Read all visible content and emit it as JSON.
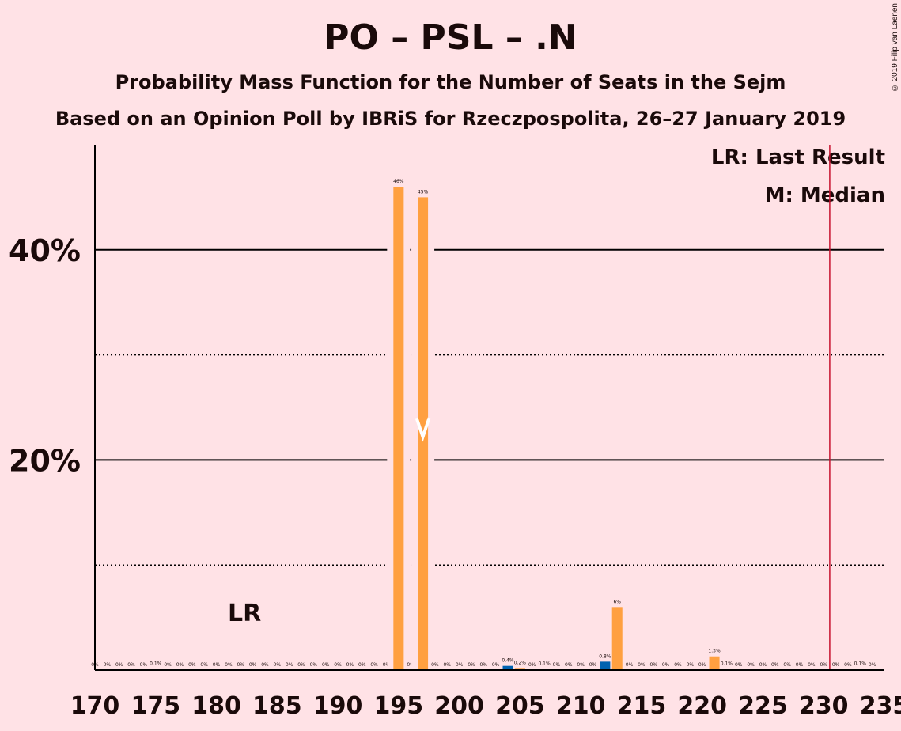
{
  "title": "PO – PSL – .N",
  "subtitle": "Probability Mass Function for the Number of Seats in the Sejm",
  "subtitle2": "Based on an Opinion Poll by IBRiS for Rzeczpospolita, 26–27 January 2019",
  "copyright": "© 2019 Filip van Laenen",
  "legend": {
    "last_result": "LR: Last Result",
    "median": "M: Median"
  },
  "lr_label": "LR",
  "colors": {
    "background": "#FFE2E6",
    "orange": "#FFA040",
    "blue": "#0062B0",
    "majority_line": "#C8102E"
  },
  "chart_data": {
    "type": "bar",
    "xlim": [
      170,
      235
    ],
    "ylim": [
      0,
      50
    ],
    "x_ticks": [
      "170",
      "175",
      "180",
      "185",
      "190",
      "195",
      "200",
      "205",
      "210",
      "215",
      "220",
      "225",
      "230",
      "235"
    ],
    "y_ticks": [
      "20%",
      "40%"
    ],
    "grid": "major solid at 20% and 40%, dotted at 10%, 30%",
    "majority_line_x": 230.5,
    "median_x": 197,
    "last_result_x": 182,
    "seats": [
      170,
      171,
      172,
      173,
      174,
      175,
      176,
      177,
      178,
      179,
      180,
      181,
      182,
      183,
      184,
      185,
      186,
      187,
      188,
      189,
      190,
      191,
      192,
      193,
      194,
      195,
      196,
      197,
      198,
      199,
      200,
      201,
      202,
      203,
      204,
      205,
      206,
      207,
      208,
      209,
      210,
      211,
      212,
      213,
      214,
      215,
      216,
      217,
      218,
      219,
      220,
      221,
      222,
      223,
      224,
      225,
      226,
      227,
      228,
      229,
      230,
      231,
      232,
      233,
      234
    ],
    "values": [
      0,
      0,
      0,
      0,
      0,
      0.1,
      0,
      0,
      0,
      0,
      0,
      0,
      0,
      0,
      0,
      0,
      0,
      0,
      0,
      0,
      0,
      0,
      0,
      0,
      0,
      46,
      0,
      45,
      0,
      0,
      0,
      0,
      0,
      0,
      0.4,
      0.2,
      0,
      0.1,
      0,
      0,
      0,
      0,
      0.8,
      6,
      0,
      0,
      0,
      0,
      0,
      0,
      0,
      1.3,
      0.1,
      0,
      0,
      0,
      0,
      0,
      0,
      0,
      0,
      0,
      0,
      0.1,
      0
    ],
    "labels": [
      "0%",
      "0%",
      "0%",
      "0%",
      "0%",
      "0.1%",
      "0%",
      "0%",
      "0%",
      "0%",
      "0%",
      "0%",
      "0%",
      "0%",
      "0%",
      "0%",
      "0%",
      "0%",
      "0%",
      "0%",
      "0%",
      "0%",
      "0%",
      "0%",
      "0%",
      "46%",
      "0%",
      "45%",
      "0%",
      "0%",
      "0%",
      "0%",
      "0%",
      "0%",
      "0.4%",
      "0.2%",
      "0%",
      "0.1%",
      "0%",
      "0%",
      "0%",
      "0%",
      "0.8%",
      "6%",
      "0%",
      "0%",
      "0%",
      "0%",
      "0%",
      "0%",
      "0%",
      "1.3%",
      "0.1%",
      "0%",
      "0%",
      "0%",
      "0%",
      "0%",
      "0%",
      "0%",
      "0%",
      "0%",
      "0%",
      "0.1%",
      "0%"
    ]
  }
}
